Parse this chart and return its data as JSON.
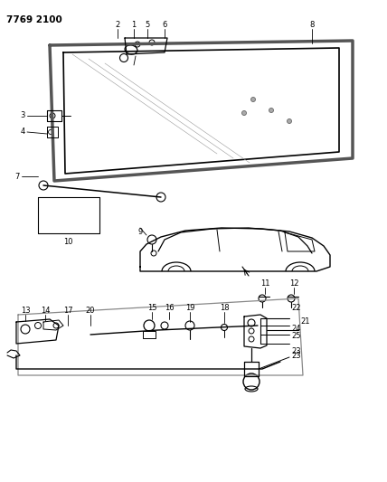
{
  "title": "7769 2100",
  "bg_color": "#ffffff",
  "line_color": "#000000",
  "fig_width": 4.28,
  "fig_height": 5.33,
  "dpi": 100
}
